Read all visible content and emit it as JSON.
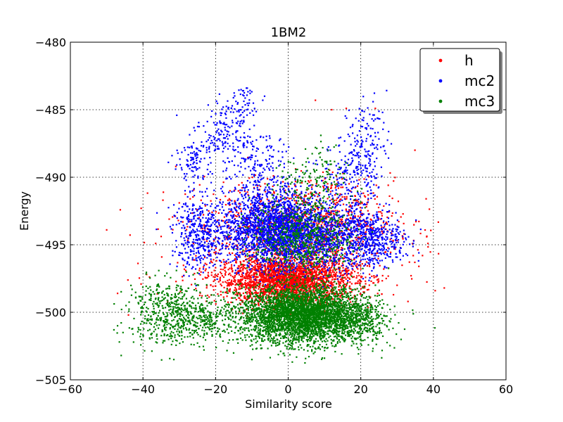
{
  "chart_data": {
    "type": "scatter",
    "title": "1BM2",
    "xlabel": "Similarity score",
    "ylabel": "Energy",
    "xlim": [
      -60,
      60
    ],
    "ylim": [
      -505,
      -480
    ],
    "xticks": [
      -60,
      -40,
      -20,
      0,
      20,
      40,
      60
    ],
    "yticks": [
      -505,
      -500,
      -495,
      -490,
      -485,
      -480
    ],
    "xtick_labels": [
      "−60",
      "−40",
      "−20",
      "0",
      "20",
      "40",
      "60"
    ],
    "ytick_labels": [
      "−505",
      "−500",
      "−495",
      "−490",
      "−485",
      "−480"
    ],
    "grid": true,
    "legend_position": "top-right",
    "series": [
      {
        "name": "h",
        "color": "#ff0000",
        "clusters": [
          {
            "cx": 0,
            "cy": -497.6,
            "sx": 9.5,
            "sy": 0.9,
            "n": 2600
          },
          {
            "cx": 5,
            "cy": -493.5,
            "sx": 12,
            "sy": 1.6,
            "n": 900
          },
          {
            "cx": 0,
            "cy": -494.0,
            "sx": 22,
            "sy": 2.2,
            "n": 300
          }
        ],
        "outliers": [
          [
            -50,
            -493.9
          ],
          [
            -47,
            -498.6
          ],
          [
            -40.5,
            -492.3
          ],
          [
            -39,
            -497.2
          ],
          [
            -34.5,
            -491.7
          ],
          [
            -30,
            -491.9
          ],
          [
            -27,
            -491.6
          ],
          [
            -44,
            -500.2
          ],
          [
            -36.5,
            -494.9
          ],
          [
            37,
            -495.8
          ],
          [
            38,
            -491.6
          ],
          [
            43,
            -498.2
          ],
          [
            40.5,
            -498.4
          ],
          [
            36,
            -496.6
          ],
          [
            38.5,
            -494.9
          ],
          [
            7.5,
            -484.3
          ],
          [
            12,
            -485.0
          ],
          [
            16,
            -484.9
          ],
          [
            24,
            -484.9
          ],
          [
            27,
            -497.5
          ],
          [
            30,
            -498.0
          ],
          [
            33,
            -499.2
          ],
          [
            29,
            -498.7
          ]
        ]
      },
      {
        "name": "mc2",
        "color": "#0000ff",
        "clusters": [
          {
            "cx": -5,
            "cy": -493.8,
            "sx": 6.5,
            "sy": 1.4,
            "n": 1700
          },
          {
            "cx": 8,
            "cy": -494.3,
            "sx": 8,
            "sy": 1.3,
            "n": 1100
          },
          {
            "cx": -24,
            "cy": -494.2,
            "sx": 4,
            "sy": 1.3,
            "n": 420
          },
          {
            "cx": 22,
            "cy": -494.5,
            "sx": 4,
            "sy": 1.1,
            "n": 380
          },
          {
            "cx": -25.5,
            "cy": -488.6,
            "sx": 2.2,
            "sy": 1.0,
            "n": 120
          },
          {
            "cx": -18,
            "cy": -486.5,
            "sx": 2.2,
            "sy": 1.5,
            "n": 110
          },
          {
            "cx": -12,
            "cy": -485.8,
            "sx": 2,
            "sy": 1.8,
            "n": 100
          },
          {
            "cx": -8,
            "cy": -489.3,
            "sx": 5,
            "sy": 1.2,
            "n": 160
          },
          {
            "cx": 21,
            "cy": -487.5,
            "sx": 3,
            "sy": 1.8,
            "n": 160
          },
          {
            "cx": 17,
            "cy": -489.8,
            "sx": 4,
            "sy": 1.2,
            "n": 140
          },
          {
            "cx": 30,
            "cy": -494.8,
            "sx": 2.5,
            "sy": 0.8,
            "n": 60
          }
        ],
        "outliers": [
          [
            -12.5,
            -483.6
          ],
          [
            -11.5,
            -483.4
          ],
          [
            -7,
            -484.3
          ],
          [
            -6.5,
            -484.0
          ],
          [
            -33,
            -488.9
          ],
          [
            -31,
            -489.4
          ],
          [
            -32,
            -488.4
          ],
          [
            36,
            -495.6
          ],
          [
            34.5,
            -494.9
          ],
          [
            26,
            -485.2
          ],
          [
            24,
            -485.7
          ],
          [
            -21,
            -485.1
          ]
        ]
      },
      {
        "name": "mc3",
        "color": "#008000",
        "clusters": [
          {
            "cx": 4,
            "cy": -500.2,
            "sx": 8.5,
            "sy": 1.05,
            "n": 3800
          },
          {
            "cx": -33,
            "cy": -500.0,
            "sx": 5.5,
            "sy": 1.2,
            "n": 500
          },
          {
            "cx": -22,
            "cy": -500.6,
            "sx": 3.5,
            "sy": 0.8,
            "n": 200
          },
          {
            "cx": 20,
            "cy": -500.6,
            "sx": 4,
            "sy": 0.9,
            "n": 250
          },
          {
            "cx": 4,
            "cy": -494.5,
            "sx": 7,
            "sy": 1.3,
            "n": 600
          },
          {
            "cx": 6,
            "cy": -490.5,
            "sx": 5,
            "sy": 1.3,
            "n": 160
          }
        ],
        "outliers": [
          [
            -47,
            -501.0
          ],
          [
            -46.5,
            -502.2
          ],
          [
            -46,
            -503.2
          ],
          [
            -45.5,
            -501.5
          ],
          [
            -48,
            -501.3
          ],
          [
            -43,
            -498.3
          ],
          [
            -31.5,
            -503.5
          ],
          [
            -29,
            -502.2
          ],
          [
            -10,
            -503.5
          ],
          [
            -1,
            -503.2
          ],
          [
            10,
            -503.4
          ],
          [
            20,
            -502.0
          ],
          [
            9,
            -486.9
          ],
          [
            11,
            -488.0
          ],
          [
            7.5,
            -487.8
          ]
        ]
      }
    ]
  }
}
